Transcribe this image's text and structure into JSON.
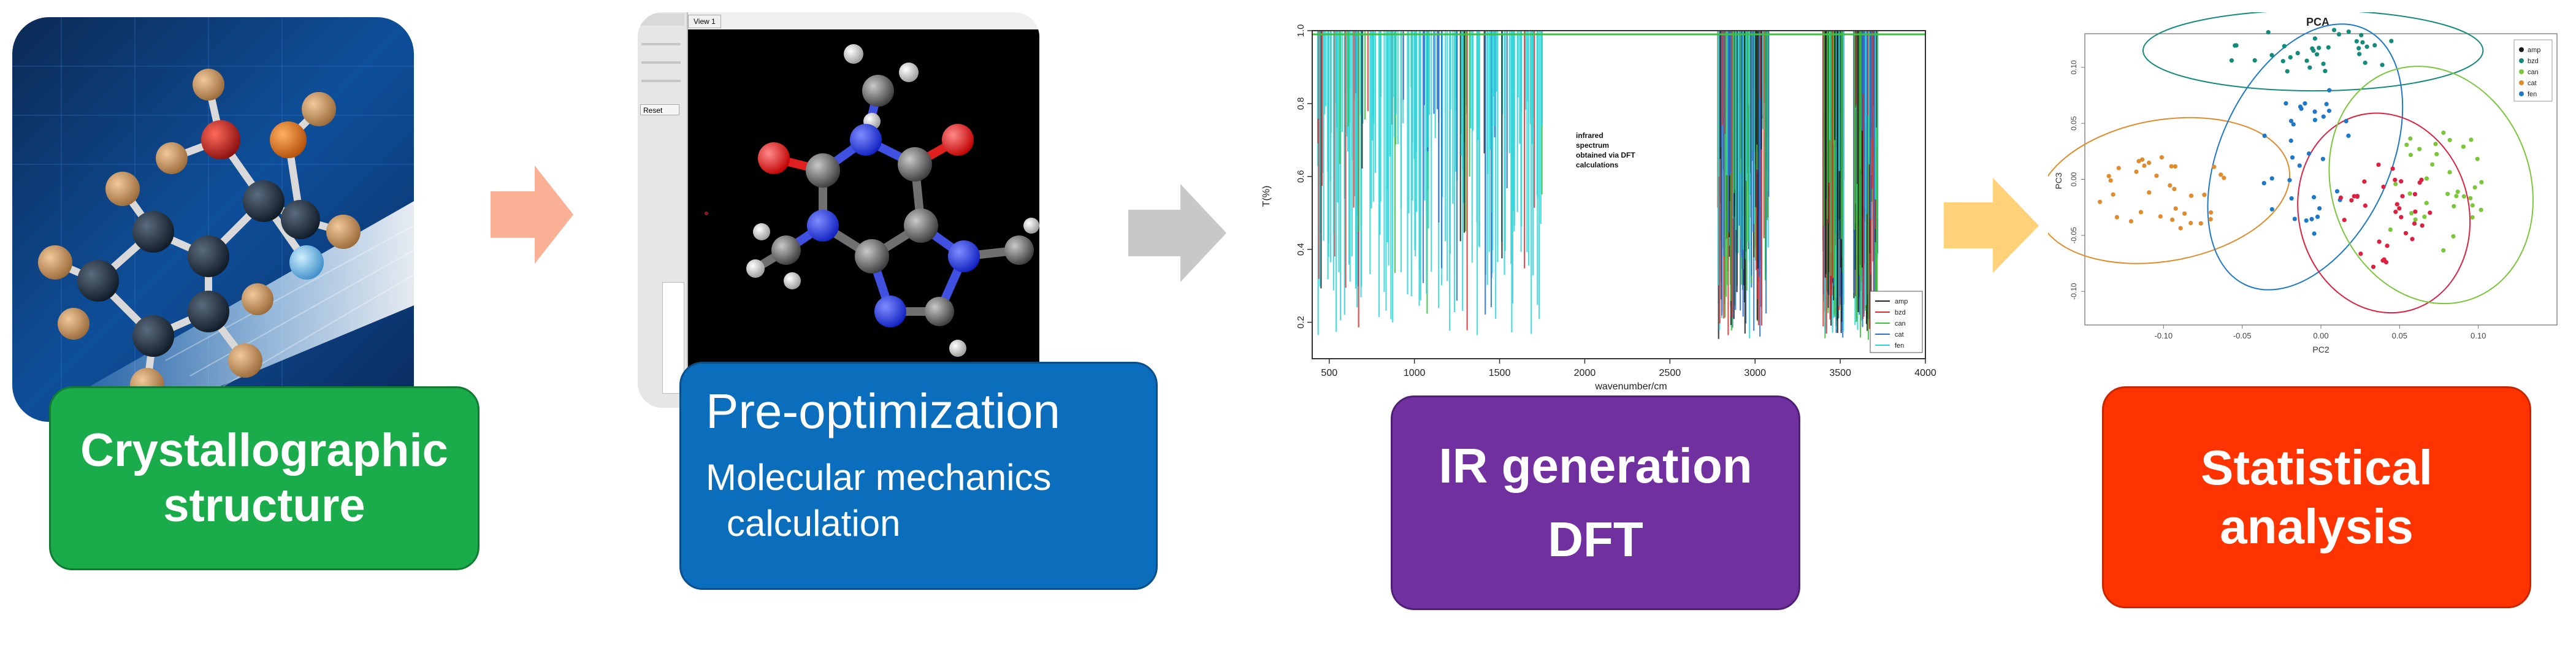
{
  "steps": [
    {
      "id": "crystal",
      "title_line1": "Crystallographic",
      "title_line2": "structure",
      "color": "#1aac4a",
      "border": "#0f7c32"
    },
    {
      "id": "preopt",
      "title": "Pre-optimization",
      "subtitle_line1": "Molecular mechanics",
      "subtitle_line2": "calculation",
      "color": "#0a6ebd",
      "border": "#0a4f8a"
    },
    {
      "id": "ir",
      "title_line1": "IR generation",
      "title_line2": "DFT",
      "color": "#7030a0",
      "border": "#4e1f73"
    },
    {
      "id": "stat",
      "title_line1": "Statistical",
      "title_line2": "analysis",
      "color": "#ff3300",
      "border": "#c92600"
    }
  ],
  "arrows": [
    {
      "id": "a1",
      "color": "#f9b095"
    },
    {
      "id": "a2",
      "color": "#c8c8c8"
    },
    {
      "id": "a3",
      "color": "#ffd27a"
    }
  ],
  "viewer": {
    "tab_label": "View 1",
    "button_label": "Reset"
  },
  "ir_chart": {
    "chart_data": {
      "type": "line",
      "xlabel": "wavenumber/cm",
      "ylabel": "T(%)",
      "xlim": [
        400,
        4000
      ],
      "ylim": [
        0.1,
        1.0
      ],
      "x_ticks": [
        500,
        1000,
        1500,
        2000,
        2500,
        3000,
        3500,
        4000
      ],
      "y_ticks": [
        0.2,
        0.4,
        0.6,
        0.8,
        1.0
      ],
      "annotation_lines": [
        "infrared",
        "spectrum",
        "obtained via DFT",
        "calculations"
      ],
      "legend_position": "bottom-right",
      "series": [
        {
          "name": "amp",
          "color": "#222222"
        },
        {
          "name": "bzd",
          "color": "#dd3030"
        },
        {
          "name": "can",
          "color": "#40c040"
        },
        {
          "name": "cat",
          "color": "#2a6fd0"
        },
        {
          "name": "fen",
          "color": "#30d5d8"
        }
      ]
    }
  },
  "pca_chart": {
    "chart_data": {
      "type": "scatter",
      "title": "PCA",
      "xlabel": "PC2",
      "ylabel": "PC3",
      "xlim": [
        -0.15,
        0.15
      ],
      "ylim": [
        -0.13,
        0.13
      ],
      "x_ticks": [
        -0.1,
        -0.05,
        0.0,
        0.05,
        0.1
      ],
      "y_ticks": [
        -0.1,
        -0.05,
        0.0,
        0.05,
        0.1
      ],
      "legend_position": "top-right",
      "series": [
        {
          "name": "amp",
          "color": "#1a1a1a"
        },
        {
          "name": "bzd",
          "color": "#138a7a"
        },
        {
          "name": "can",
          "color": "#7cc63c"
        },
        {
          "name": "cat",
          "color": "#e08b2c"
        },
        {
          "name": "fen",
          "color": "#1e78c8"
        }
      ]
    }
  }
}
